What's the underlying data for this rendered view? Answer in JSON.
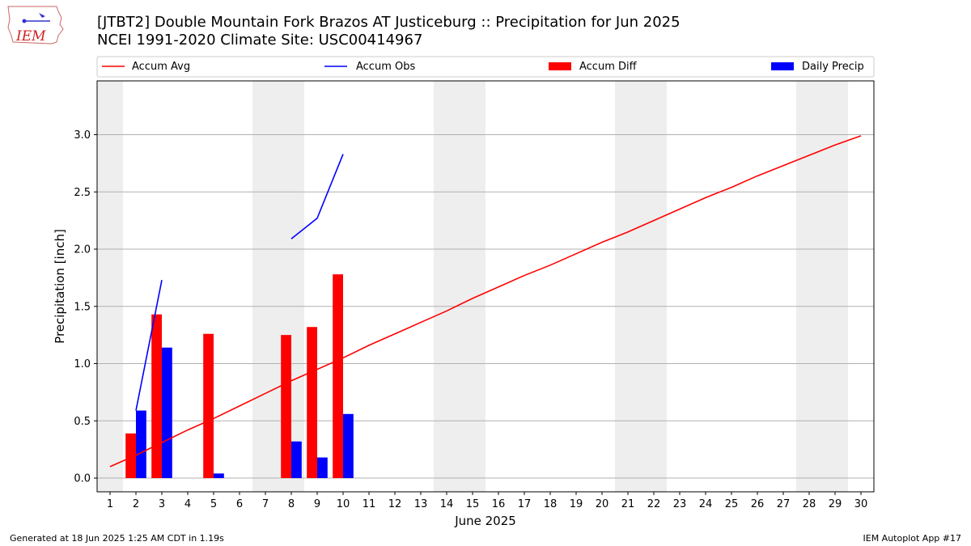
{
  "header": {
    "title_line1": "[JTBT2] Double Mountain Fork Brazos  AT Justiceburg :: Precipitation for Jun 2025",
    "title_line2": "NCEI 1991-2020 Climate Site: USC00414967",
    "logo_text": "IEM"
  },
  "footer": {
    "generated": "Generated at 18 Jun 2025 1:25 AM CDT in 1.19s",
    "app": "IEM Autoplot App #17"
  },
  "chart_data": {
    "type": "bar",
    "xlabel": "June 2025",
    "ylabel": "Precipitation [inch]",
    "xlim": [
      0.5,
      30.5
    ],
    "ylim": [
      -0.12,
      3.47
    ],
    "yticks": [
      "0.0",
      "0.5",
      "1.0",
      "1.5",
      "2.0",
      "2.5",
      "3.0"
    ],
    "xticks": [
      "1",
      "2",
      "3",
      "4",
      "5",
      "6",
      "7",
      "8",
      "9",
      "10",
      "11",
      "12",
      "13",
      "14",
      "15",
      "16",
      "17",
      "18",
      "19",
      "20",
      "21",
      "22",
      "23",
      "24",
      "25",
      "26",
      "27",
      "28",
      "29",
      "30"
    ],
    "grid": "horizontal",
    "legend_placement": "top",
    "weekend_shading": [
      [
        1
      ],
      [
        7,
        8
      ],
      [
        14,
        15
      ],
      [
        21,
        22
      ],
      [
        28,
        29
      ]
    ],
    "colors": {
      "avg": "#ff0000",
      "obs": "#0000ff",
      "diff": "#ff0000",
      "daily": "#0000ff",
      "shade": "#eeeeee",
      "grid": "#b0b0b0"
    },
    "legend": [
      "Accum Avg",
      "Accum Obs",
      "Accum Diff",
      "Daily Precip"
    ],
    "series": [
      {
        "name": "Accum Avg",
        "kind": "line",
        "x": [
          1,
          2,
          3,
          4,
          5,
          6,
          7,
          8,
          9,
          10,
          11,
          12,
          13,
          14,
          15,
          16,
          17,
          18,
          19,
          20,
          21,
          22,
          23,
          24,
          25,
          26,
          27,
          28,
          29,
          30
        ],
        "values": [
          0.1,
          0.2,
          0.31,
          0.42,
          0.52,
          0.63,
          0.74,
          0.85,
          0.95,
          1.05,
          1.16,
          1.26,
          1.36,
          1.46,
          1.57,
          1.67,
          1.77,
          1.86,
          1.96,
          2.06,
          2.15,
          2.25,
          2.35,
          2.45,
          2.54,
          2.64,
          2.73,
          2.82,
          2.91,
          2.99
        ]
      },
      {
        "name": "Accum Obs",
        "kind": "line",
        "segments": [
          {
            "x": [
              2,
              3
            ],
            "values": [
              0.59,
              1.73
            ]
          },
          {
            "x": [
              8,
              9,
              10
            ],
            "values": [
              2.09,
              2.27,
              2.83
            ]
          }
        ]
      },
      {
        "name": "Accum Diff",
        "kind": "bar",
        "x": [
          2,
          3,
          5,
          8,
          9,
          10
        ],
        "values": [
          0.39,
          1.43,
          1.26,
          1.25,
          1.32,
          1.78
        ]
      },
      {
        "name": "Daily Precip",
        "kind": "bar",
        "x": [
          2,
          3,
          5,
          8,
          9,
          10
        ],
        "values": [
          0.59,
          1.14,
          0.04,
          0.32,
          0.18,
          0.56
        ]
      }
    ]
  }
}
